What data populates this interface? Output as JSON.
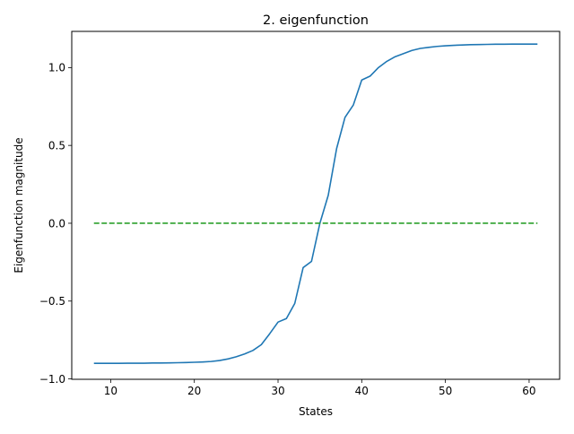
{
  "chart_data": {
    "type": "line",
    "title": "2. eigenfunction",
    "xlabel": "States",
    "ylabel": "Eigenfunction magnitude",
    "xlim": [
      5.35,
      63.65
    ],
    "ylim": [
      -1.0025,
      1.2325
    ],
    "x_ticks": [
      10,
      20,
      30,
      40,
      50,
      60
    ],
    "y_ticks": [
      -1.0,
      -0.5,
      0.0,
      0.5,
      1.0
    ],
    "x_tick_labels": [
      "10",
      "20",
      "30",
      "40",
      "50",
      "60"
    ],
    "y_tick_labels": [
      "−1.0",
      "−0.5",
      "0.0",
      "0.5",
      "1.0"
    ],
    "grid": false,
    "series": [
      {
        "color": "#1f77b4",
        "style": "solid",
        "x": [
          8,
          9,
          10,
          11,
          12,
          13,
          14,
          15,
          16,
          17,
          18,
          19,
          20,
          21,
          22,
          23,
          24,
          25,
          26,
          27,
          28,
          29,
          30,
          31,
          32,
          33,
          34,
          35,
          36,
          37,
          38,
          39,
          40,
          41,
          42,
          43,
          44,
          45,
          46,
          47,
          48,
          49,
          50,
          51,
          52,
          53,
          54,
          55,
          56,
          57,
          58,
          59,
          60,
          61
        ],
        "y": [
          -0.9,
          -0.9,
          -0.9,
          -0.9,
          -0.899,
          -0.899,
          -0.899,
          -0.898,
          -0.898,
          -0.897,
          -0.896,
          -0.895,
          -0.893,
          -0.891,
          -0.888,
          -0.882,
          -0.872,
          -0.858,
          -0.84,
          -0.817,
          -0.78,
          -0.71,
          -0.635,
          -0.612,
          -0.515,
          -0.285,
          -0.245,
          0.0,
          0.18,
          0.48,
          0.68,
          0.76,
          0.92,
          0.945,
          1.0,
          1.04,
          1.07,
          1.09,
          1.11,
          1.123,
          1.13,
          1.136,
          1.14,
          1.143,
          1.145,
          1.147,
          1.148,
          1.149,
          1.15,
          1.15,
          1.151,
          1.151,
          1.151,
          1.151
        ]
      },
      {
        "color": "#2ca02c",
        "style": "dashed",
        "x": [
          8,
          61
        ],
        "y": [
          0.0,
          0.0
        ]
      }
    ]
  }
}
